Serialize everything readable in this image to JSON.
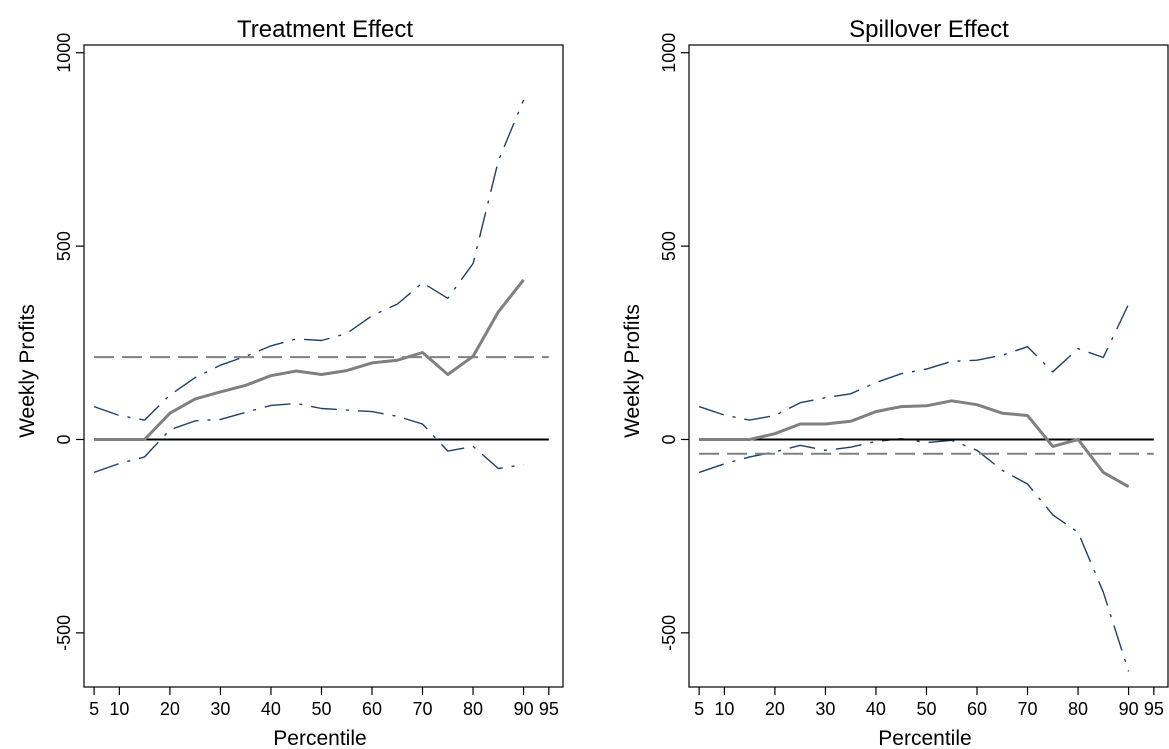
{
  "chart_data": [
    {
      "type": "line",
      "title": "Treatment Effect",
      "xlabel": "Percentile",
      "ylabel": "Weekly Profits",
      "xlim": [
        3,
        98
      ],
      "ylim": [
        -640,
        1020
      ],
      "xticks": [
        5,
        10,
        20,
        30,
        40,
        50,
        60,
        70,
        80,
        90,
        95
      ],
      "xtick_labels": [
        "5",
        "10",
        "20",
        "30",
        "40",
        "50",
        "60",
        "70",
        "80",
        "90",
        "95"
      ],
      "yticks": [
        -500,
        0,
        500,
        1000
      ],
      "ytick_labels": [
        "-500",
        "0",
        "500",
        "1000"
      ],
      "x": [
        5,
        10,
        15,
        20,
        25,
        30,
        35,
        40,
        45,
        50,
        55,
        60,
        65,
        70,
        75,
        80,
        85,
        90
      ],
      "series": [
        {
          "role": "estimate",
          "values": [
            0,
            0,
            0,
            68,
            105,
            123,
            140,
            165,
            177,
            168,
            178,
            198,
            205,
            225,
            168,
            215,
            330,
            413
          ],
          "color": "#808080",
          "style": "solid"
        },
        {
          "role": "upper",
          "values": [
            85,
            62,
            50,
            115,
            160,
            192,
            215,
            242,
            260,
            256,
            274,
            320,
            350,
            405,
            365,
            455,
            720,
            878
          ],
          "color": "#1f3f66",
          "style": "dashdot"
        },
        {
          "role": "lower",
          "values": [
            -85,
            -62,
            -45,
            25,
            48,
            52,
            70,
            88,
            93,
            80,
            76,
            72,
            60,
            40,
            -30,
            -18,
            -75,
            -65
          ],
          "color": "#1f3f66",
          "style": "dashdot"
        },
        {
          "role": "mean",
          "values": [
            213,
            213
          ],
          "x": [
            5,
            95
          ],
          "color": "#808080",
          "style": "dashed"
        },
        {
          "role": "zero",
          "values": [
            0,
            0
          ],
          "x": [
            5,
            95
          ],
          "color": "#000000",
          "style": "solid"
        }
      ]
    },
    {
      "type": "line",
      "title": "Spillover Effect",
      "xlabel": "Percentile",
      "ylabel": "Weekly Profits",
      "xlim": [
        3,
        98
      ],
      "ylim": [
        -640,
        1020
      ],
      "xticks": [
        5,
        10,
        20,
        30,
        40,
        50,
        60,
        70,
        80,
        90,
        95
      ],
      "xtick_labels": [
        "5",
        "10",
        "20",
        "30",
        "40",
        "50",
        "60",
        "70",
        "80",
        "90",
        "95"
      ],
      "yticks": [
        -500,
        0,
        500,
        1000
      ],
      "ytick_labels": [
        "-500",
        "0",
        "500",
        "1000"
      ],
      "x": [
        5,
        10,
        15,
        20,
        25,
        30,
        35,
        40,
        45,
        50,
        55,
        60,
        65,
        70,
        75,
        80,
        85,
        90
      ],
      "series": [
        {
          "role": "estimate",
          "values": [
            0,
            0,
            0,
            15,
            40,
            40,
            47,
            72,
            85,
            87,
            100,
            90,
            68,
            62,
            -18,
            0,
            -85,
            -122
          ],
          "color": "#808080",
          "style": "solid"
        },
        {
          "role": "upper",
          "values": [
            85,
            63,
            50,
            62,
            95,
            108,
            118,
            147,
            170,
            182,
            202,
            205,
            218,
            240,
            175,
            235,
            212,
            350
          ],
          "color": "#1f3f66",
          "style": "dashdot"
        },
        {
          "role": "lower",
          "values": [
            -85,
            -63,
            -45,
            -32,
            -15,
            -28,
            -20,
            -5,
            2,
            -8,
            -2,
            -28,
            -80,
            -115,
            -195,
            -240,
            -395,
            -600
          ],
          "color": "#1f3f66",
          "style": "dashdot"
        },
        {
          "role": "mean",
          "values": [
            -37,
            -37
          ],
          "x": [
            5,
            95
          ],
          "color": "#808080",
          "style": "dashed"
        },
        {
          "role": "zero",
          "values": [
            0,
            0
          ],
          "x": [
            5,
            95
          ],
          "color": "#000000",
          "style": "solid"
        }
      ]
    }
  ]
}
